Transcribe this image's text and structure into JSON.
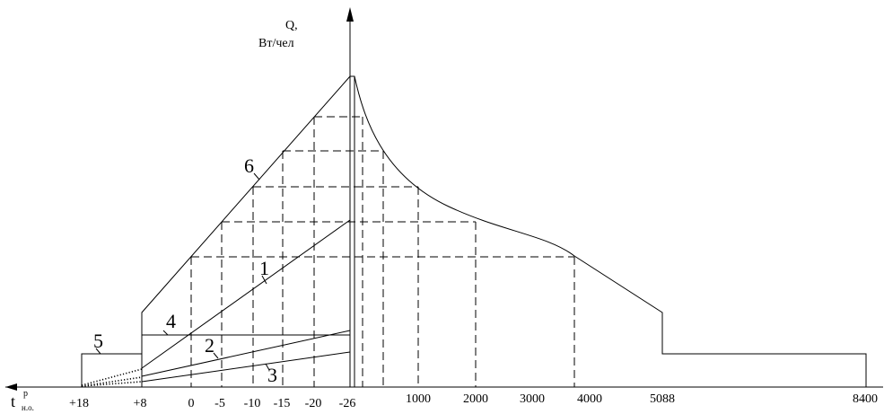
{
  "axes": {
    "y_label_line1": "Q,",
    "y_label_line2": "Вт/чел",
    "x_label_main": "t",
    "x_label_sup": "р",
    "x_label_sub": "н.о."
  },
  "left_ticks": [
    "+18",
    "+8",
    "0",
    "-5",
    "-10",
    "-15",
    "-20",
    "-26"
  ],
  "right_ticks": [
    "1000",
    "2000",
    "3000",
    "4000",
    "5088",
    "8400"
  ],
  "curve_labels": [
    "1",
    "2",
    "3",
    "4",
    "5",
    "6"
  ]
}
